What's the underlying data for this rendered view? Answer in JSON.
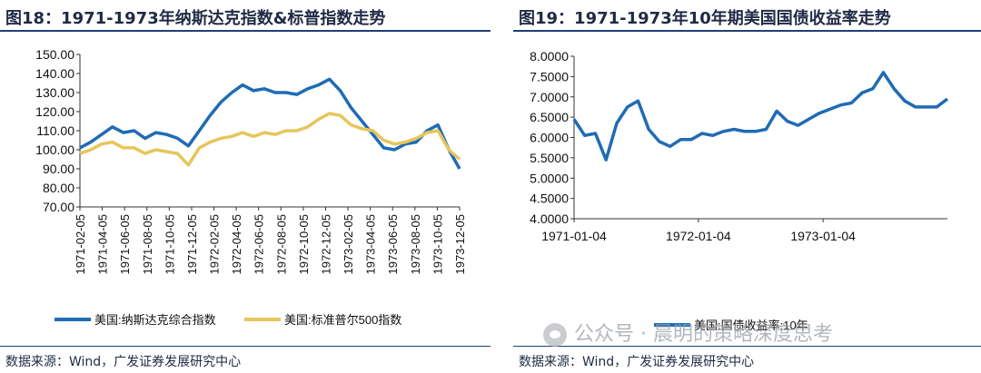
{
  "left_panel": {
    "title": "图18：1971-1973年纳斯达克指数&标普指数走势",
    "source": "数据来源：Wind，广发证券发展研究中心"
  },
  "right_panel": {
    "title": "图19：1971-1973年10年期美国国债收益率走势",
    "source": "数据来源：Wind，广发证券发展研究中心"
  },
  "watermark": "公众号 · 晨明的策略深度思考",
  "colors": {
    "series_blue": "#1f6bb5",
    "series_gold": "#e6c65a",
    "axis": "#333333",
    "text": "#1f2a44"
  },
  "chart_data": [
    {
      "type": "line",
      "title": "",
      "xlabel": "",
      "ylabel": "",
      "ylim": [
        70,
        150
      ],
      "yticks": [
        "70.00",
        "80.00",
        "90.00",
        "100.00",
        "110.00",
        "120.00",
        "130.00",
        "140.00",
        "150.00"
      ],
      "xtick_labels": [
        "1971-02-05",
        "1971-04-05",
        "1971-06-05",
        "1971-08-05",
        "1971-10-05",
        "1971-12-05",
        "1972-02-05",
        "1972-04-05",
        "1972-06-05",
        "1972-08-05",
        "1972-10-05",
        "1972-12-05",
        "1973-02-05",
        "1973-04-05",
        "1973-06-05",
        "1973-08-05",
        "1973-10-05",
        "1973-12-05"
      ],
      "x": [
        "1971-01",
        "1971-02",
        "1971-03",
        "1971-04",
        "1971-05",
        "1971-06",
        "1971-07",
        "1971-08",
        "1971-09",
        "1971-10",
        "1971-11",
        "1971-12",
        "1972-01",
        "1972-02",
        "1972-03",
        "1972-04",
        "1972-05",
        "1972-06",
        "1972-07",
        "1972-08",
        "1972-09",
        "1972-10",
        "1972-11",
        "1972-12",
        "1973-01",
        "1973-02",
        "1973-03",
        "1973-04",
        "1973-05",
        "1973-06",
        "1973-07",
        "1973-08",
        "1973-09",
        "1973-10",
        "1973-11",
        "1973-12"
      ],
      "series": [
        {
          "name": "美国:纳斯达克综合指数",
          "color": "#1f6bb5",
          "values": [
            101,
            104,
            108,
            112,
            109,
            110,
            106,
            109,
            108,
            106,
            102,
            110,
            118,
            125,
            130,
            134,
            131,
            132,
            130,
            130,
            129,
            132,
            134,
            137,
            131,
            122,
            115,
            108,
            101,
            100,
            103,
            104,
            110,
            113,
            100,
            90
          ]
        },
        {
          "name": "美国:标准普尔500指数",
          "color": "#e6c65a",
          "values": [
            98,
            100,
            103,
            104,
            101,
            101,
            98,
            100,
            99,
            98,
            92,
            101,
            104,
            106,
            107,
            109,
            107,
            109,
            108,
            110,
            110,
            112,
            116,
            119,
            118,
            113,
            111,
            110,
            105,
            103,
            104,
            106,
            109,
            110,
            100,
            95
          ]
        }
      ],
      "legend": "bottom"
    },
    {
      "type": "line",
      "title": "",
      "xlabel": "",
      "ylabel": "",
      "ylim": [
        4.0,
        8.0
      ],
      "yticks": [
        "4.0000",
        "4.5000",
        "5.0000",
        "5.5000",
        "6.0000",
        "6.5000",
        "7.0000",
        "7.5000",
        "8.0000"
      ],
      "xtick_labels": [
        "1971-01-04",
        "1972-01-04",
        "1973-01-04"
      ],
      "x": [
        "1971-01",
        "1971-02",
        "1971-03",
        "1971-04",
        "1971-05",
        "1971-06",
        "1971-07",
        "1971-08",
        "1971-09",
        "1971-10",
        "1971-11",
        "1971-12",
        "1972-01",
        "1972-02",
        "1972-03",
        "1972-04",
        "1972-05",
        "1972-06",
        "1972-07",
        "1972-08",
        "1972-09",
        "1972-10",
        "1972-11",
        "1972-12",
        "1973-01",
        "1973-02",
        "1973-03",
        "1973-04",
        "1973-05",
        "1973-06",
        "1973-07",
        "1973-08",
        "1973-09",
        "1973-10",
        "1973-11",
        "1973-12"
      ],
      "series": [
        {
          "name": "美国:国债收益率:10年",
          "color": "#1f6bb5",
          "values": [
            6.45,
            6.05,
            6.1,
            5.45,
            6.35,
            6.75,
            6.9,
            6.2,
            5.9,
            5.78,
            5.95,
            5.95,
            6.1,
            6.05,
            6.15,
            6.2,
            6.15,
            6.15,
            6.2,
            6.65,
            6.4,
            6.3,
            6.45,
            6.6,
            6.7,
            6.8,
            6.85,
            7.1,
            7.2,
            7.6,
            7.2,
            6.9,
            6.75,
            6.75,
            6.75,
            6.95
          ]
        }
      ],
      "legend": "bottom"
    }
  ]
}
